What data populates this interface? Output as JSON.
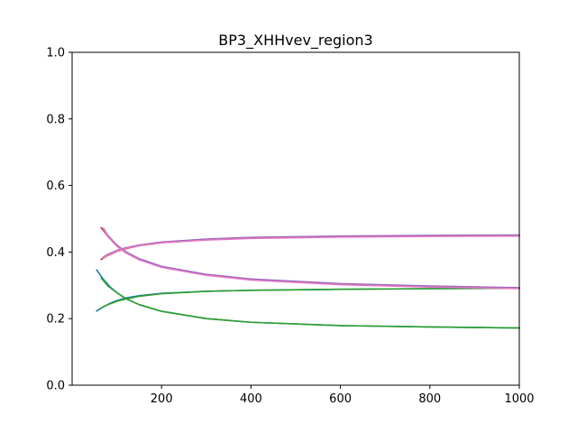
{
  "chart_data": {
    "type": "line",
    "title": "BP3_XHHvev_region3",
    "xlabel": "",
    "ylabel": "",
    "xlim": [
      0,
      1000
    ],
    "ylim": [
      0.0,
      1.0
    ],
    "xticks": [
      200,
      400,
      600,
      800,
      1000
    ],
    "xtick_labels": [
      "200",
      "400",
      "600",
      "800",
      "1000"
    ],
    "yticks": [
      0.0,
      0.2,
      0.4,
      0.6,
      0.8,
      1.0
    ],
    "ytick_labels": [
      "0.0",
      "0.2",
      "0.4",
      "0.6",
      "0.8",
      "1.0"
    ],
    "grid": false,
    "legend": "none",
    "series": [
      {
        "color": "#1f77b4",
        "x": [
          55,
          70,
          85,
          100,
          120,
          150,
          200,
          300,
          400,
          600,
          800,
          1000
        ],
        "y": [
          0.223,
          0.236,
          0.246,
          0.254,
          0.262,
          0.269,
          0.276,
          0.282,
          0.285,
          0.288,
          0.29,
          0.291
        ]
      },
      {
        "color": "#1f77b4",
        "x": [
          55,
          70,
          85,
          100,
          120,
          150,
          200,
          300,
          400,
          600,
          800,
          1000
        ],
        "y": [
          0.346,
          0.318,
          0.295,
          0.278,
          0.26,
          0.242,
          0.222,
          0.2,
          0.189,
          0.179,
          0.175,
          0.172
        ]
      },
      {
        "color": "#2ca02c",
        "x": [
          65,
          80,
          100,
          120,
          150,
          200,
          300,
          400,
          600,
          800,
          1000
        ],
        "y": [
          0.232,
          0.242,
          0.252,
          0.259,
          0.267,
          0.275,
          0.282,
          0.285,
          0.288,
          0.29,
          0.291
        ]
      },
      {
        "color": "#2ca02c",
        "x": [
          65,
          80,
          100,
          120,
          150,
          200,
          300,
          400,
          600,
          800,
          1000
        ],
        "y": [
          0.322,
          0.298,
          0.278,
          0.26,
          0.242,
          0.222,
          0.2,
          0.189,
          0.179,
          0.175,
          0.172
        ]
      },
      {
        "color": "#d62728",
        "x": [
          65,
          80,
          100,
          120,
          150,
          200,
          300,
          400,
          600,
          800,
          1000
        ],
        "y": [
          0.378,
          0.39,
          0.402,
          0.41,
          0.419,
          0.428,
          0.437,
          0.442,
          0.446,
          0.448,
          0.449
        ]
      },
      {
        "color": "#d62728",
        "x": [
          65,
          80,
          100,
          120,
          150,
          200,
          300,
          400,
          600,
          800,
          1000
        ],
        "y": [
          0.473,
          0.447,
          0.418,
          0.398,
          0.377,
          0.355,
          0.331,
          0.318,
          0.304,
          0.297,
          0.292
        ]
      },
      {
        "color": "#9467bd",
        "x": [
          70,
          80,
          100,
          120,
          150,
          200,
          300,
          400,
          600,
          800,
          1000
        ],
        "y": [
          0.385,
          0.393,
          0.405,
          0.413,
          0.421,
          0.43,
          0.439,
          0.444,
          0.448,
          0.45,
          0.451
        ]
      },
      {
        "color": "#9467bd",
        "x": [
          70,
          80,
          100,
          120,
          150,
          200,
          300,
          400,
          600,
          800,
          1000
        ],
        "y": [
          0.471,
          0.45,
          0.421,
          0.401,
          0.38,
          0.357,
          0.333,
          0.319,
          0.305,
          0.298,
          0.293
        ]
      },
      {
        "color": "#e377c2",
        "x": [
          70,
          80,
          100,
          120,
          150,
          200,
          300,
          400,
          600,
          800,
          1000
        ],
        "y": [
          0.383,
          0.391,
          0.403,
          0.411,
          0.419,
          0.428,
          0.436,
          0.441,
          0.445,
          0.447,
          0.448
        ]
      },
      {
        "color": "#e377c2",
        "x": [
          70,
          80,
          100,
          120,
          150,
          200,
          300,
          400,
          600,
          800,
          1000
        ],
        "y": [
          0.468,
          0.447,
          0.418,
          0.398,
          0.377,
          0.354,
          0.33,
          0.316,
          0.302,
          0.295,
          0.29
        ]
      }
    ]
  }
}
